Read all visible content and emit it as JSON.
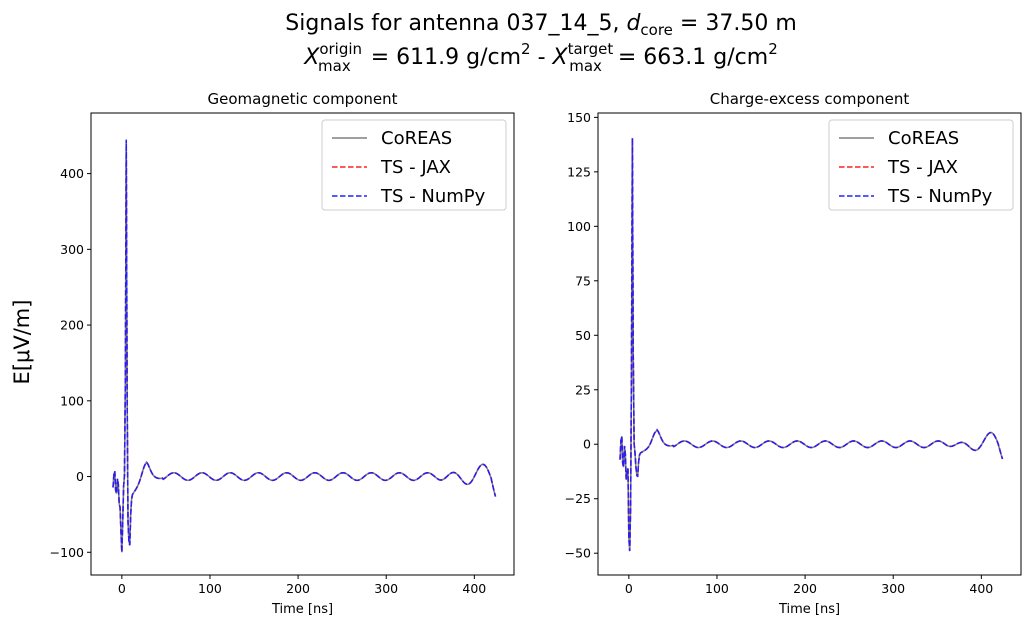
{
  "figure": {
    "suptitle_line1_prefix": "Signals for antenna 037_14_5, ",
    "suptitle_line1_var": "d",
    "suptitle_line1_sub": "core",
    "suptitle_line1_suffix": " = 37.50 m",
    "suptitle_line2": {
      "var": "X",
      "sub": "max",
      "sup_origin": "origin",
      "sup_target": "target",
      "origin_value": " = 611.9 g/cm",
      "target_value": " = 663.1 g/cm",
      "exponent": "2",
      "separator": " - "
    },
    "ylabel": "E[μV/m]"
  },
  "chart_data": [
    {
      "type": "line",
      "title": "Geomagnetic component",
      "xlabel": "Time [ns]",
      "ylabel": "E[μV/m]",
      "xlim": [
        -35,
        445
      ],
      "ylim": [
        -130,
        480
      ],
      "xticks": [
        0,
        100,
        200,
        300,
        400
      ],
      "yticks": [
        -100,
        0,
        100,
        200,
        300,
        400
      ],
      "legend_position": "top-right",
      "signal": {
        "t_start": -10,
        "t_end": 424,
        "peak_time": 5,
        "peak": 450,
        "trough_time": 0,
        "trough": -100,
        "trough2_time": 8,
        "trough2": -85,
        "bump_time": 27,
        "bump": 17,
        "ripple_amp": 5,
        "ripple_period": 32,
        "tail_amp": 15
      },
      "series": [
        {
          "name": "CoREAS",
          "color": "#808080",
          "dash": "solid"
        },
        {
          "name": "TS - JAX",
          "color": "#ff2020",
          "dash": "dashed"
        },
        {
          "name": "TS - NumPy",
          "color": "#2020ff",
          "dash": "dashed"
        }
      ]
    },
    {
      "type": "line",
      "title": "Charge-excess component",
      "xlabel": "Time [ns]",
      "ylabel": "",
      "xlim": [
        -35,
        445
      ],
      "ylim": [
        -60,
        152
      ],
      "xticks": [
        0,
        100,
        200,
        300,
        400
      ],
      "yticks": [
        -50,
        -25,
        0,
        25,
        50,
        75,
        100,
        125,
        150
      ],
      "legend_position": "top-right",
      "signal": {
        "t_start": -10,
        "t_end": 424,
        "peak_time": 4,
        "peak": 141,
        "trough_time": 1,
        "trough": -49,
        "trough2_time": 9,
        "trough2": -14,
        "bump_time": 31,
        "bump": 6,
        "ripple_amp": 1.5,
        "ripple_period": 32,
        "tail_amp": 6
      },
      "series": [
        {
          "name": "CoREAS",
          "color": "#808080",
          "dash": "solid"
        },
        {
          "name": "TS - JAX",
          "color": "#ff2020",
          "dash": "dashed"
        },
        {
          "name": "TS - NumPy",
          "color": "#2020ff",
          "dash": "dashed"
        }
      ]
    }
  ]
}
